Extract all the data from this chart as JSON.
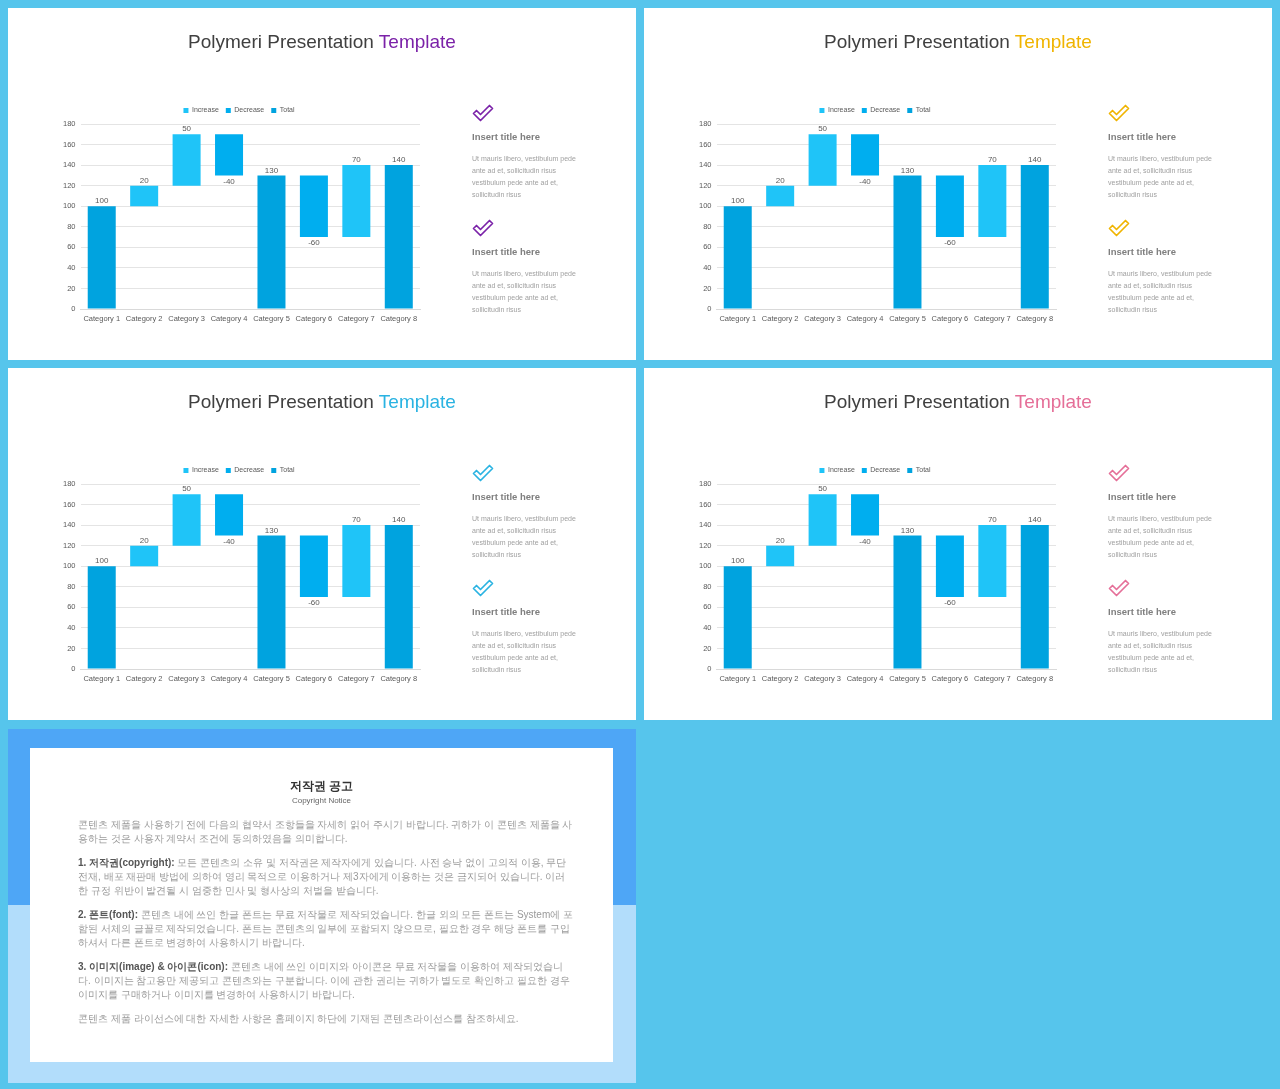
{
  "chart_data": [
    {
      "type": "bar",
      "title": "Polymeri Presentation Template",
      "categories": [
        "Category 1",
        "Category 2",
        "Category 3",
        "Category 4",
        "Category 5",
        "Category 6",
        "Category 7",
        "Category 8"
      ],
      "series": [
        {
          "name": "Increase",
          "color": "#1fc4f8",
          "values": [
            null,
            20,
            50,
            null,
            null,
            null,
            70,
            null
          ],
          "base": [
            null,
            100,
            120,
            null,
            null,
            null,
            70,
            null
          ]
        },
        {
          "name": "Decrease",
          "color": "#00aeef",
          "values": [
            null,
            null,
            null,
            -40,
            null,
            -60,
            null,
            null
          ],
          "base": [
            null,
            null,
            null,
            170,
            null,
            130,
            null,
            null
          ]
        },
        {
          "name": "Total",
          "color": "#00a3df",
          "values": [
            100,
            null,
            null,
            null,
            130,
            null,
            null,
            140
          ],
          "base": [
            0,
            null,
            null,
            null,
            0,
            null,
            null,
            0
          ]
        }
      ],
      "ylim": [
        0,
        180
      ],
      "yticks": [
        0,
        20,
        40,
        60,
        80,
        100,
        120,
        140,
        160,
        180
      ],
      "grid": "y",
      "legend": "top",
      "data_labels": true,
      "annotations": [
        "Insert title here",
        "Ut mauris libero, vestibulum pede ante ad et, sollicitudin risus vestibulum pede ante ad et, sollicitudin risus",
        "Insert title here",
        "Ut mauris libero, vestibulum pede ante ad et, sollicitudin risus vestibulum pede ante ad et, sollicitudin risus"
      ]
    },
    {
      "type": "bar",
      "title": "Polymeri Presentation Template",
      "categories": [
        "Category 1",
        "Category 2",
        "Category 3",
        "Category 4",
        "Category 5",
        "Category 6",
        "Category 7",
        "Category 8"
      ],
      "series": [
        {
          "name": "Increase",
          "color": "#1fc4f8",
          "values": [
            null,
            20,
            50,
            null,
            null,
            null,
            70,
            null
          ],
          "base": [
            null,
            100,
            120,
            null,
            null,
            null,
            70,
            null
          ]
        },
        {
          "name": "Decrease",
          "color": "#00aeef",
          "values": [
            null,
            null,
            null,
            -40,
            null,
            -60,
            null,
            null
          ],
          "base": [
            null,
            null,
            null,
            170,
            null,
            130,
            null,
            null
          ]
        },
        {
          "name": "Total",
          "color": "#00a3df",
          "values": [
            100,
            null,
            null,
            null,
            130,
            null,
            null,
            140
          ],
          "base": [
            0,
            null,
            null,
            null,
            0,
            null,
            null,
            0
          ]
        }
      ],
      "ylim": [
        0,
        180
      ],
      "yticks": [
        0,
        20,
        40,
        60,
        80,
        100,
        120,
        140,
        160,
        180
      ],
      "grid": "y",
      "legend": "top",
      "data_labels": true,
      "annotations": [
        "Insert title here",
        "Ut mauris libero, vestibulum pede ante ad et, sollicitudin risus vestibulum pede ante ad et, sollicitudin risus",
        "Insert title here",
        "Ut mauris libero, vestibulum pede ante ad et, sollicitudin risus vestibulum pede ante ad et, sollicitudin risus"
      ]
    },
    {
      "type": "bar",
      "title": "Polymeri Presentation Template",
      "categories": [
        "Category 1",
        "Category 2",
        "Category 3",
        "Category 4",
        "Category 5",
        "Category 6",
        "Category 7",
        "Category 8"
      ],
      "series": [
        {
          "name": "Increase",
          "color": "#1fc4f8",
          "values": [
            null,
            20,
            50,
            null,
            null,
            null,
            70,
            null
          ],
          "base": [
            null,
            100,
            120,
            null,
            null,
            null,
            70,
            null
          ]
        },
        {
          "name": "Decrease",
          "color": "#00aeef",
          "values": [
            null,
            null,
            null,
            -40,
            null,
            -60,
            null,
            null
          ],
          "base": [
            null,
            null,
            null,
            170,
            null,
            130,
            null,
            null
          ]
        },
        {
          "name": "Total",
          "color": "#00a3df",
          "values": [
            100,
            null,
            null,
            null,
            130,
            null,
            null,
            140
          ],
          "base": [
            0,
            null,
            null,
            null,
            0,
            null,
            null,
            0
          ]
        }
      ],
      "ylim": [
        0,
        180
      ],
      "yticks": [
        0,
        20,
        40,
        60,
        80,
        100,
        120,
        140,
        160,
        180
      ],
      "grid": "y",
      "legend": "top",
      "data_labels": true,
      "annotations": [
        "Insert title here",
        "Ut mauris libero, vestibulum pede ante ad et, sollicitudin risus vestibulum pede ante ad et, sollicitudin risus",
        "Insert title here",
        "Ut mauris libero, vestibulum pede ante ad et, sollicitudin risus vestibulum pede ante ad et, sollicitudin risus"
      ]
    },
    {
      "type": "bar",
      "title": "Polymeri Presentation Template",
      "categories": [
        "Category 1",
        "Category 2",
        "Category 3",
        "Category 4",
        "Category 5",
        "Category 6",
        "Category 7",
        "Category 8"
      ],
      "series": [
        {
          "name": "Increase",
          "color": "#1fc4f8",
          "values": [
            null,
            20,
            50,
            null,
            null,
            null,
            70,
            null
          ],
          "base": [
            null,
            100,
            120,
            null,
            null,
            null,
            70,
            null
          ]
        },
        {
          "name": "Decrease",
          "color": "#00aeef",
          "values": [
            null,
            null,
            null,
            -40,
            null,
            -60,
            null,
            null
          ],
          "base": [
            null,
            null,
            null,
            170,
            null,
            130,
            null,
            null
          ]
        },
        {
          "name": "Total",
          "color": "#00a3df",
          "values": [
            100,
            null,
            null,
            null,
            130,
            null,
            null,
            140
          ],
          "base": [
            0,
            null,
            null,
            null,
            0,
            null,
            null,
            0
          ]
        }
      ],
      "ylim": [
        0,
        180
      ],
      "yticks": [
        0,
        20,
        40,
        60,
        80,
        100,
        120,
        140,
        160,
        180
      ],
      "grid": "y",
      "legend": "top",
      "data_labels": true,
      "annotations": [
        "Insert title here",
        "Ut mauris libero, vestibulum pede ante ad et, sollicitudin risus vestibulum pede ante ad et, sollicitudin risus",
        "Insert title here",
        "Ut mauris libero, vestibulum pede ante ad et, sollicitudin risus vestibulum pede ante ad et, sollicitudin risus"
      ]
    },
    {
      "type": "other",
      "title": "저작권 공고",
      "subtitle": "Copyright Notice",
      "annotations": [
        "콘텐츠 제품을 사용하기 전에 다음의 협약서 조항들을 자세히 읽어 주시기 바랍니다. 귀하가 이 콘텐츠 제품을 사용하는 것은 사용자 계약서 조건에 동의하였음을 의미합니다.",
        "1. 저작권(copyright): 모든 콘텐츠의 소유 및 저작권은 제작자에게 있습니다. 사전 승낙 없이 고의적 이용, 무단전재, 배포 재판매 방법에 의하여 영리 목적으로 이용하거나 제3자에게 이용하는 것은 금지되어 있습니다. 이러한 규정 위반이 발견될 시 엄중한 민사 및 형사상의 처벌을 받습니다.",
        "2. 폰트(font): 콘텐츠 내에 쓰인 한글 폰트는 무료 저작물로 제작되었습니다. 한글 외의 모든 폰트는 System에 포함된 서체의 글꼴로 제작되었습니다. 폰트는 콘텐츠의 일부에 포함되지 않으므로, 필요한 경우 해당 폰트를 구입하셔서 다른 폰트로 변경하여 사용하시기 바랍니다.",
        "3. 이미지(image) & 아이콘(icon): 콘텐츠 내에 쓰인 이미지와 아이콘은 무료 저작물을 이용하여 제작되었습니다. 이미지는 참고용만 제공되고 콘텐츠와는 구분합니다. 이에 관한 권리는 귀하가 별도로 확인하고 필요한 경우 이미지를 구매하거나 이미지를 변경하여 사용하시기 바랍니다.",
        "콘텐츠 제품 라이선스에 대한 자세한 사항은 홈페이지 하단에 기재된 콘텐츠라이선스를 참조하세요."
      ]
    }
  ]
}
